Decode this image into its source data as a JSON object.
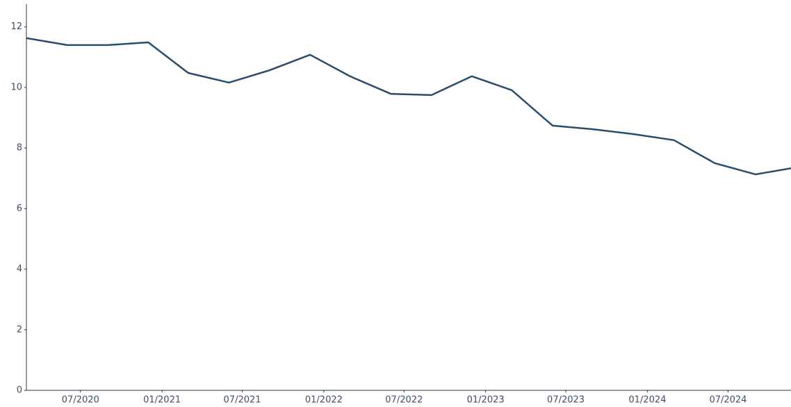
{
  "chart_data": {
    "type": "line",
    "x": [
      "2020-03",
      "2020-06",
      "2020-09",
      "2020-12",
      "2021-03",
      "2021-06",
      "2021-09",
      "2021-12",
      "2022-03",
      "2022-06",
      "2022-09",
      "2022-12",
      "2023-03",
      "2023-06",
      "2023-09",
      "2023-12",
      "2024-03",
      "2024-06",
      "2024-09",
      "2024-12"
    ],
    "series": [
      {
        "color": "#264c6e",
        "values": [
          11.63,
          11.4,
          11.4,
          11.49,
          10.48,
          10.16,
          10.57,
          11.08,
          10.37,
          9.79,
          9.75,
          10.37,
          9.91,
          8.74,
          8.62,
          8.46,
          8.26,
          7.5,
          7.13,
          7.36
        ]
      }
    ],
    "xlim": [
      "2020-03",
      "2024-11-20"
    ],
    "xticks": [
      {
        "value": "2020-07",
        "label": "07/2020"
      },
      {
        "value": "2021-01",
        "label": "01/2021"
      },
      {
        "value": "2021-07",
        "label": "07/2021"
      },
      {
        "value": "2022-01",
        "label": "01/2022"
      },
      {
        "value": "2022-07",
        "label": "07/2022"
      },
      {
        "value": "2023-01",
        "label": "01/2023"
      },
      {
        "value": "2023-07",
        "label": "07/2023"
      },
      {
        "value": "2024-01",
        "label": "01/2024"
      },
      {
        "value": "2024-07",
        "label": "07/2024"
      }
    ],
    "ylim": [
      0,
      12.75
    ],
    "yticks": [
      0,
      2,
      4,
      6,
      8,
      10,
      12
    ],
    "grid": false
  }
}
